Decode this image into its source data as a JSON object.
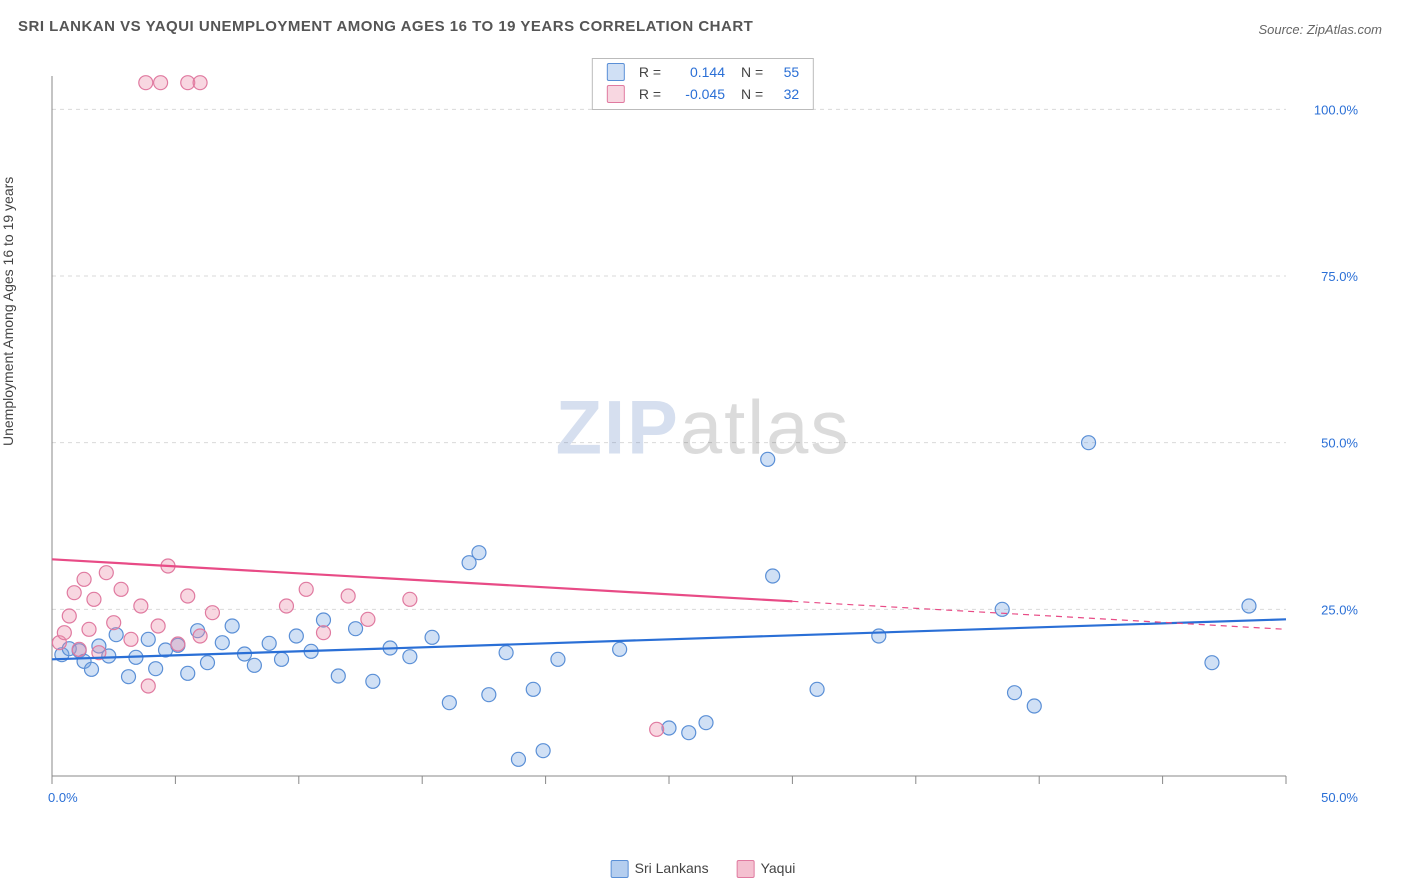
{
  "title": "SRI LANKAN VS YAQUI UNEMPLOYMENT AMONG AGES 16 TO 19 YEARS CORRELATION CHART",
  "source": "Source: ZipAtlas.com",
  "ylabel": "Unemployment Among Ages 16 to 19 years",
  "watermark": {
    "bold": "ZIP",
    "rest": "atlas"
  },
  "chart": {
    "type": "scatter",
    "xlim": [
      0,
      50
    ],
    "ylim": [
      0,
      105
    ],
    "x_ticks": [
      0,
      5,
      10,
      15,
      20,
      25,
      30,
      35,
      40,
      45,
      50
    ],
    "x_tick_labels": {
      "0": "0.0%",
      "50": "50.0%"
    },
    "y_ticks": [
      25,
      50,
      75,
      100
    ],
    "y_tick_labels": {
      "25": "25.0%",
      "50": "50.0%",
      "75": "75.0%",
      "100": "100.0%"
    },
    "grid_color": "#d9d9d9",
    "axis_color": "#888",
    "axis_label_color": "#2a6fd6",
    "background_color": "#ffffff",
    "marker_radius": 7,
    "marker_stroke_width": 1.2,
    "line_width": 2.2,
    "series": [
      {
        "name": "Sri Lankans",
        "fill_color": "rgba(120,165,225,0.35)",
        "stroke_color": "#5a8fd6",
        "line_color": "#2a6fd6",
        "r_value": "0.144",
        "n_value": "55",
        "trend": {
          "x1": 0,
          "y1": 17.5,
          "x2": 50,
          "y2": 23.5
        },
        "trend_solid_to_x": 50,
        "points": [
          [
            0.4,
            18.2
          ],
          [
            0.7,
            19.1
          ],
          [
            1.1,
            18.8
          ],
          [
            1.3,
            17.2
          ],
          [
            1.6,
            16.0
          ],
          [
            1.9,
            19.5
          ],
          [
            2.3,
            18.0
          ],
          [
            2.6,
            21.2
          ],
          [
            3.1,
            14.9
          ],
          [
            3.4,
            17.8
          ],
          [
            3.9,
            20.5
          ],
          [
            4.2,
            16.1
          ],
          [
            4.6,
            18.9
          ],
          [
            5.1,
            19.6
          ],
          [
            5.5,
            15.4
          ],
          [
            5.9,
            21.8
          ],
          [
            6.3,
            17.0
          ],
          [
            6.9,
            20.0
          ],
          [
            7.3,
            22.5
          ],
          [
            7.8,
            18.3
          ],
          [
            8.2,
            16.6
          ],
          [
            8.8,
            19.9
          ],
          [
            9.3,
            17.5
          ],
          [
            9.9,
            21.0
          ],
          [
            10.5,
            18.7
          ],
          [
            11.0,
            23.4
          ],
          [
            11.6,
            15.0
          ],
          [
            12.3,
            22.1
          ],
          [
            13.0,
            14.2
          ],
          [
            13.7,
            19.2
          ],
          [
            14.5,
            17.9
          ],
          [
            15.4,
            20.8
          ],
          [
            16.1,
            11.0
          ],
          [
            16.9,
            32.0
          ],
          [
            17.3,
            33.5
          ],
          [
            17.7,
            12.2
          ],
          [
            18.4,
            18.5
          ],
          [
            18.9,
            2.5
          ],
          [
            19.5,
            13.0
          ],
          [
            19.9,
            3.8
          ],
          [
            20.5,
            17.5
          ],
          [
            23.0,
            19.0
          ],
          [
            25.0,
            7.2
          ],
          [
            25.8,
            6.5
          ],
          [
            26.5,
            8.0
          ],
          [
            29.0,
            47.5
          ],
          [
            29.2,
            30.0
          ],
          [
            31.0,
            13.0
          ],
          [
            33.5,
            21.0
          ],
          [
            38.5,
            25.0
          ],
          [
            39.0,
            12.5
          ],
          [
            39.8,
            10.5
          ],
          [
            42.0,
            50.0
          ],
          [
            47.0,
            17.0
          ],
          [
            48.5,
            25.5
          ]
        ]
      },
      {
        "name": "Yaqui",
        "fill_color": "rgba(235,140,170,0.35)",
        "stroke_color": "#e07aa0",
        "line_color": "#e84b86",
        "r_value": "-0.045",
        "n_value": "32",
        "trend": {
          "x1": 0,
          "y1": 32.5,
          "x2": 50,
          "y2": 22.0
        },
        "trend_solid_to_x": 30,
        "points": [
          [
            0.3,
            20.0
          ],
          [
            0.5,
            21.5
          ],
          [
            0.7,
            24.0
          ],
          [
            0.9,
            27.5
          ],
          [
            1.1,
            19.0
          ],
          [
            1.3,
            29.5
          ],
          [
            1.5,
            22.0
          ],
          [
            1.7,
            26.5
          ],
          [
            1.9,
            18.5
          ],
          [
            2.2,
            30.5
          ],
          [
            2.5,
            23.0
          ],
          [
            2.8,
            28.0
          ],
          [
            3.2,
            20.5
          ],
          [
            3.6,
            25.5
          ],
          [
            3.9,
            13.5
          ],
          [
            4.3,
            22.5
          ],
          [
            4.7,
            31.5
          ],
          [
            5.1,
            19.8
          ],
          [
            5.5,
            27.0
          ],
          [
            6.0,
            21.0
          ],
          [
            6.5,
            24.5
          ],
          [
            3.8,
            104
          ],
          [
            4.4,
            104
          ],
          [
            5.5,
            104
          ],
          [
            6.0,
            104
          ],
          [
            9.5,
            25.5
          ],
          [
            10.3,
            28.0
          ],
          [
            11.0,
            21.5
          ],
          [
            12.0,
            27.0
          ],
          [
            12.8,
            23.5
          ],
          [
            14.5,
            26.5
          ],
          [
            24.5,
            7.0
          ]
        ]
      }
    ],
    "footer_legend": [
      {
        "label": "Sri Lankans",
        "fill": "rgba(120,165,225,0.55)",
        "stroke": "#5a8fd6"
      },
      {
        "label": "Yaqui",
        "fill": "rgba(235,140,170,0.55)",
        "stroke": "#e07aa0"
      }
    ]
  }
}
